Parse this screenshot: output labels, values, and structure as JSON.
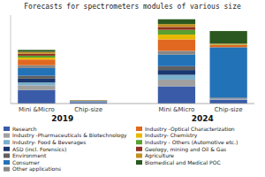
{
  "chart_data": {
    "type": "bar",
    "stacked": true,
    "title": "Forecasts for spectrometers modules of various size",
    "categories": [
      "Mini &Micro",
      "Chip-size",
      "Mini &Micro",
      "Chip-size"
    ],
    "annotations": [
      {
        "text": "2019"
      },
      {
        "text": "2024"
      }
    ],
    "series": [
      {
        "name": "Research",
        "color": "#3a5ca8",
        "values": [
          14,
          1.5,
          18,
          4
        ]
      },
      {
        "name": "Industry -Pharmaceuticals & Biotechnology",
        "color": "#a0a0a0",
        "values": [
          5,
          0.3,
          7,
          0.8
        ]
      },
      {
        "name": "Industry- Food & Beverages",
        "color": "#7ab0cc",
        "values": [
          3,
          0.2,
          5,
          0.5
        ]
      },
      {
        "name": "ASD (incl. Forensics)",
        "color": "#1a3870",
        "values": [
          4,
          0.2,
          5,
          0.5
        ]
      },
      {
        "name": "Environment",
        "color": "#606060",
        "values": [
          3,
          0.2,
          4,
          0.5
        ]
      },
      {
        "name": "Consumer",
        "color": "#2272b8",
        "values": [
          8,
          0.4,
          12,
          52
        ]
      },
      {
        "name": "Other applications",
        "color": "#888888",
        "values": [
          3,
          0.1,
          4,
          0.8
        ]
      },
      {
        "name": "Industry -Optical Characterization",
        "color": "#e06820",
        "values": [
          6,
          0.3,
          12,
          2
        ]
      },
      {
        "name": "Industry- Chemistry",
        "color": "#e8b800",
        "values": [
          2,
          0.1,
          5,
          0.4
        ]
      },
      {
        "name": "Industry - Others (Automotive etc.)",
        "color": "#58a030",
        "values": [
          2,
          0.1,
          5,
          0.4
        ]
      },
      {
        "name": "Geology, mining and Oil & Gas",
        "color": "#903020",
        "values": [
          2,
          0.1,
          3,
          0.4
        ]
      },
      {
        "name": "Agriculture",
        "color": "#c09020",
        "values": [
          2,
          0.1,
          3,
          0.4
        ]
      },
      {
        "name": "Biomedical and Medical POC",
        "color": "#2a5820",
        "values": [
          2,
          0.1,
          5,
          13
        ]
      }
    ],
    "ylim": [
      0,
      92.4
    ],
    "tick_labels": "x",
    "grid": false,
    "legend": "bottom"
  }
}
